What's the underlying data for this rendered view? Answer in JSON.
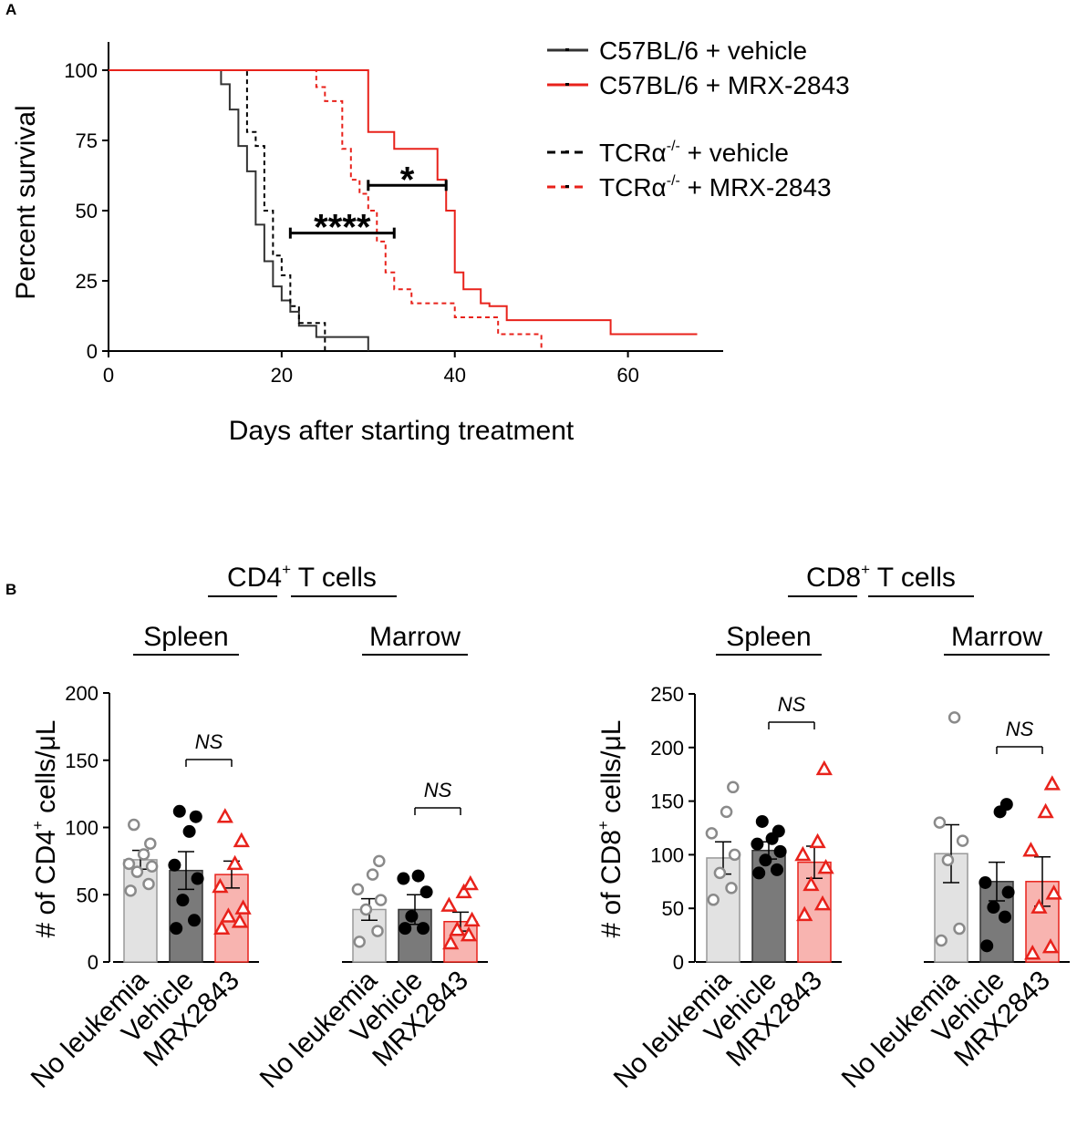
{
  "panel_labels": {
    "a": "A",
    "b": "B"
  },
  "colors": {
    "black": "#000000",
    "red": "#e8221b",
    "grey_dot": "#8a8a8a",
    "bar_grey": "#e2e2e2",
    "bar_dark": "#7a7a7a",
    "bar_red": "#f8b4b0",
    "km_dark": "#333333"
  },
  "chart_data": [
    {
      "id": "survival",
      "type": "line",
      "subtype": "kaplan-meier",
      "xlabel": "Days after starting treatment",
      "ylabel": "Percent survival",
      "xlim": [
        0,
        71
      ],
      "ylim": [
        0,
        100
      ],
      "xticks": [
        0,
        20,
        40,
        60
      ],
      "yticks": [
        0,
        25,
        50,
        75,
        100
      ],
      "legend_position": "top-right",
      "series": [
        {
          "name": "C57BL/6 + vehicle",
          "legend_main": "C57BL/6 + vehicle",
          "legend_sup": "",
          "legend_rest": "",
          "color": "#333333",
          "dash": false,
          "x": [
            0,
            13,
            14,
            15,
            16,
            17,
            18,
            19,
            20,
            21,
            22,
            23,
            24,
            25,
            30
          ],
          "y": [
            100,
            95,
            86,
            73,
            64,
            45,
            32,
            23,
            18,
            14,
            9,
            9,
            5,
            5,
            0
          ]
        },
        {
          "name": "C57BL/6 + MRX-2843",
          "legend_main": "C57BL/6  + MRX-2843",
          "legend_sup": "",
          "legend_rest": "",
          "color": "#e8221b",
          "dash": false,
          "x": [
            0,
            30,
            33,
            38,
            39,
            40,
            41,
            43,
            44,
            46,
            58,
            68
          ],
          "y": [
            100,
            78,
            72,
            61,
            50,
            28,
            22,
            17,
            16,
            11,
            6,
            6
          ]
        },
        {
          "name": "TCRα-/- + vehicle",
          "legend_main": "TCRα",
          "legend_sup": "-/-",
          "legend_rest": " + vehicle",
          "color": "#000000",
          "dash": true,
          "x": [
            0,
            16,
            17,
            18,
            19,
            20,
            21,
            22,
            23,
            24,
            25
          ],
          "y": [
            100,
            78,
            73,
            50,
            34,
            27,
            16,
            10,
            10,
            10,
            0
          ]
        },
        {
          "name": "TCRα-/- + MRX-2843",
          "legend_main": "TCRα",
          "legend_sup": "-/-",
          "legend_rest": " + MRX-2843",
          "color": "#e8221b",
          "dash": true,
          "x": [
            0,
            24,
            25,
            27,
            28,
            29,
            30,
            31,
            32,
            33,
            34,
            35,
            39,
            40,
            44,
            45,
            50
          ],
          "y": [
            100,
            94,
            89,
            72,
            61,
            56,
            50,
            39,
            28,
            22,
            22,
            17,
            17,
            12,
            12,
            6,
            0
          ]
        }
      ],
      "annotations": [
        {
          "label": "*",
          "x_from": 30,
          "x_to": 39,
          "y": 59
        },
        {
          "label": "****",
          "x_from": 21,
          "x_to": 33,
          "y": 42
        }
      ]
    },
    {
      "id": "cd4",
      "type": "bar",
      "title": "CD4",
      "title_sup": "+",
      "title_rest": " T cells",
      "ylabel_pre": "# of CD4",
      "ylabel_sup": "+",
      "ylabel_post": " cells/μL",
      "ylim": [
        0,
        200
      ],
      "yticks": [
        0,
        50,
        100,
        150,
        200
      ],
      "groups": [
        {
          "name": "Spleen",
          "sig": "NS",
          "bars": [
            {
              "category": "No leukemia",
              "mean": 76,
              "sem": 7,
              "points": [
                53,
                58,
                67,
                71,
                73,
                80,
                88,
                102
              ],
              "style": "grey"
            },
            {
              "category": "Vehicle",
              "mean": 68,
              "sem": 14,
              "points": [
                25,
                31,
                46,
                62,
                72,
                97,
                108,
                112
              ],
              "style": "dark"
            },
            {
              "category": "MRX2843",
              "mean": 65,
              "sem": 10,
              "points": [
                25,
                30,
                34,
                40,
                56,
                73,
                90,
                108
              ],
              "style": "red"
            }
          ]
        },
        {
          "name": "Marrow",
          "sig": "NS",
          "bars": [
            {
              "category": "No leukemia",
              "mean": 39,
              "sem": 8,
              "points": [
                15,
                23,
                39,
                46,
                54,
                65,
                75
              ],
              "style": "grey"
            },
            {
              "category": "Vehicle",
              "mean": 39,
              "sem": 11,
              "points": [
                25,
                25,
                34,
                52,
                62,
                64
              ],
              "style": "dark"
            },
            {
              "category": "MRX2843",
              "mean": 30,
              "sem": 7,
              "points": [
                14,
                20,
                24,
                31,
                42,
                52,
                58
              ],
              "style": "red"
            }
          ]
        }
      ]
    },
    {
      "id": "cd8",
      "type": "bar",
      "title": "CD8",
      "title_sup": "+",
      "title_rest": " T cells",
      "ylabel_pre": "# of CD8",
      "ylabel_sup": "+",
      "ylabel_post": " cells/μL",
      "ylim": [
        0,
        250
      ],
      "yticks": [
        0,
        50,
        100,
        150,
        200,
        250
      ],
      "groups": [
        {
          "name": "Spleen",
          "sig": "NS",
          "bars": [
            {
              "category": "No leukemia",
              "mean": 97,
              "sem": 15,
              "points": [
                58,
                69,
                83,
                100,
                120,
                140,
                163
              ],
              "style": "grey"
            },
            {
              "category": "Vehicle",
              "mean": 104,
              "sem": 8,
              "points": [
                83,
                86,
                95,
                103,
                110,
                115,
                122,
                131
              ],
              "style": "dark"
            },
            {
              "category": "MRX2843",
              "mean": 93,
              "sem": 15,
              "points": [
                44,
                54,
                72,
                88,
                100,
                112,
                180
              ],
              "style": "red"
            }
          ]
        },
        {
          "name": "Marrow",
          "sig": "NS",
          "bars": [
            {
              "category": "No leukemia",
              "mean": 101,
              "sem": 27,
              "points": [
                20,
                31,
                95,
                113,
                130,
                228
              ],
              "style": "grey"
            },
            {
              "category": "Vehicle",
              "mean": 75,
              "sem": 18,
              "points": [
                15,
                42,
                51,
                65,
                74,
                140,
                147
              ],
              "style": "dark"
            },
            {
              "category": "MRX2843",
              "mean": 75,
              "sem": 23,
              "points": [
                8,
                14,
                51,
                64,
                104,
                140,
                166
              ],
              "style": "red"
            }
          ]
        }
      ]
    }
  ]
}
